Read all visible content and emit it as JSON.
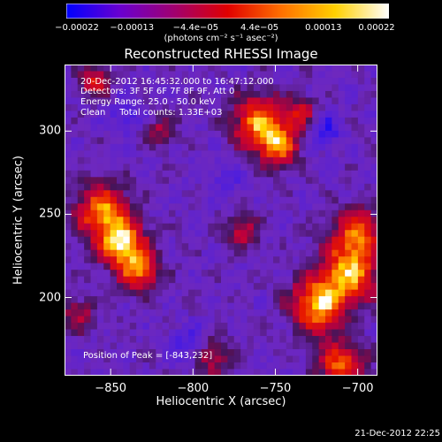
{
  "chart_data": {
    "type": "heatmap",
    "title": "Reconstructed RHESSI Image",
    "xlabel": "Heliocentric X (arcsec)",
    "ylabel": "Heliocentric Y (arcsec)",
    "xlim": [
      -878,
      -688
    ],
    "ylim": [
      153,
      340
    ],
    "xticks": [
      -850,
      -800,
      -750,
      -700
    ],
    "xtick_labels": [
      "−850",
      "−800",
      "−750",
      "−700"
    ],
    "yticks": [
      200,
      250,
      300
    ],
    "ytick_labels": [
      "200",
      "250",
      "300"
    ],
    "colorbar": {
      "range": [
        -0.00022,
        0.00022
      ],
      "tick_labels": [
        "−0.00022",
        "−0.00013",
        "−4.4e−05",
        "4.4e−05",
        "0.00013",
        "0.00022"
      ],
      "units": "(photons cm⁻² s⁻¹ asec⁻²)",
      "colors": [
        "#0000ff",
        "#6a00d0",
        "#a00070",
        "#e00000",
        "#ff7000",
        "#ffd000",
        "#ffffff"
      ]
    },
    "annotations": [
      "20-Dec-2012 16:45:32.000 to 16:47:12.000",
      "Detectors: 3F 5F 6F 7F 8F 9F, Att 0",
      "Energy Range: 25.0 - 50.0 keV",
      "Clean     Total counts: 1.33E+03"
    ],
    "peak_label": "Position of Peak = [-843,232]",
    "timestamp": "21-Dec-2012 22:25",
    "background_color": "#000000"
  }
}
